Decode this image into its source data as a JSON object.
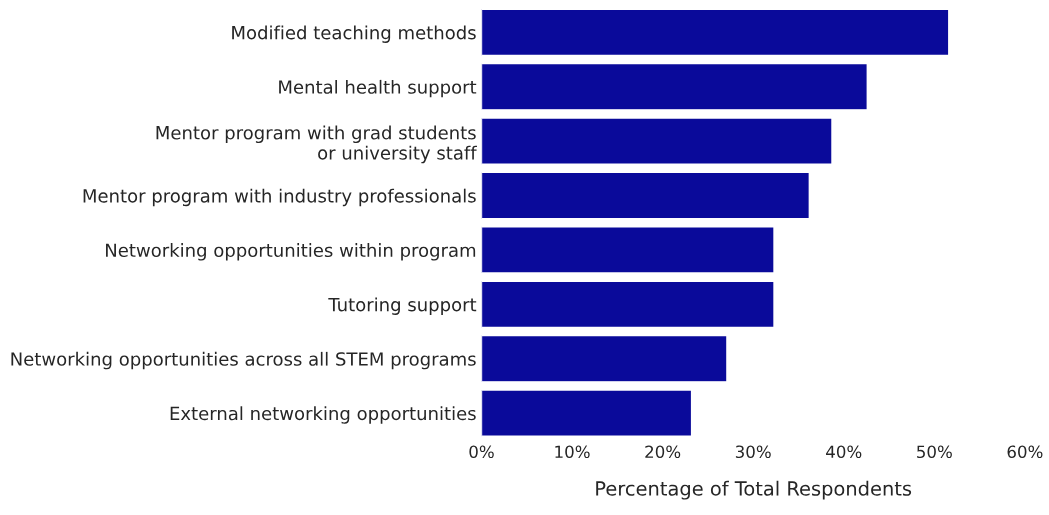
{
  "chart_data": {
    "type": "bar",
    "orientation": "horizontal",
    "xlabel": "Percentage of Total Respondents",
    "categories": [
      "Modified teaching methods",
      "Mental health support",
      "Mentor program with grad students\nor university staff",
      "Mentor program with industry professionals",
      "Networking opportunities within program",
      "Tutoring support",
      "Networking opportunities across all STEM programs",
      "External networking opportunities"
    ],
    "values": [
      51.6,
      42.6,
      38.7,
      36.2,
      32.3,
      32.3,
      27.1,
      23.2
    ],
    "color": "#0a0a9a",
    "xlim": [
      0,
      60
    ],
    "xticks": [
      {
        "value": 0,
        "label": "0%"
      },
      {
        "value": 10,
        "label": "10%"
      },
      {
        "value": 20,
        "label": "20%"
      },
      {
        "value": 30,
        "label": "30%"
      },
      {
        "value": 40,
        "label": "40%"
      },
      {
        "value": 50,
        "label": "50%"
      },
      {
        "value": 60,
        "label": "60%"
      }
    ],
    "grid": false,
    "legend": false
  }
}
